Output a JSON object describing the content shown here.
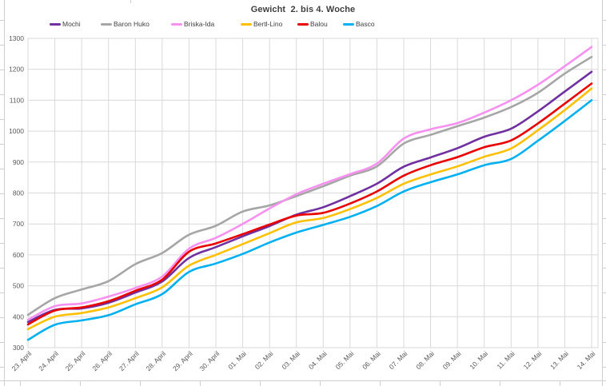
{
  "chart_data": {
    "type": "line",
    "title": "Gewicht  2. bis 4. Woche",
    "xlabel": "",
    "ylabel": "",
    "ylim": [
      300,
      1300
    ],
    "ytick_step": 100,
    "grid": true,
    "legend_position": "top",
    "categories": [
      "23. April",
      "24. April",
      "25. April",
      "26. April",
      "27. April",
      "28. April",
      "29. April",
      "30. April",
      "01. Mai",
      "02. Mai",
      "03. Mai",
      "04. Mai",
      "05. Mai",
      "06. Mai",
      "07. Mai",
      "08. Mai",
      "09. Mai",
      "10. Mai",
      "11. Mai",
      "12. Mai",
      "13. Mai",
      "14. Mai"
    ],
    "series": [
      {
        "name": "Mochi",
        "color": "#7030A0",
        "values": [
          383,
          422,
          427,
          445,
          478,
          514,
          590,
          625,
          660,
          693,
          730,
          754,
          790,
          830,
          885,
          915,
          945,
          982,
          1008,
          1064,
          1128,
          1192
        ]
      },
      {
        "name": "Baron Huko",
        "color": "#A6A6A6",
        "values": [
          406,
          460,
          488,
          515,
          570,
          606,
          665,
          694,
          740,
          760,
          790,
          822,
          856,
          886,
          960,
          988,
          1016,
          1044,
          1078,
          1124,
          1186,
          1240
        ]
      },
      {
        "name": "Briska-Ida",
        "color": "#F791F0",
        "values": [
          390,
          434,
          443,
          465,
          493,
          530,
          620,
          655,
          700,
          750,
          796,
          830,
          861,
          895,
          976,
          1006,
          1026,
          1060,
          1100,
          1150,
          1210,
          1272
        ]
      },
      {
        "name": "Bertl-Lino",
        "color": "#FFC000",
        "values": [
          360,
          400,
          412,
          430,
          460,
          495,
          565,
          600,
          635,
          670,
          705,
          719,
          748,
          784,
          830,
          860,
          886,
          917,
          944,
          1003,
          1068,
          1138
        ]
      },
      {
        "name": "Balou",
        "color": "#E90000",
        "values": [
          375,
          420,
          430,
          450,
          484,
          520,
          610,
          637,
          667,
          698,
          727,
          736,
          766,
          805,
          856,
          890,
          916,
          948,
          970,
          1025,
          1089,
          1154
        ]
      },
      {
        "name": "Basco",
        "color": "#00B0F0",
        "values": [
          325,
          374,
          388,
          405,
          440,
          473,
          545,
          572,
          603,
          640,
          672,
          697,
          723,
          758,
          805,
          835,
          860,
          890,
          910,
          969,
          1033,
          1100
        ]
      }
    ],
    "colors": {
      "gridline": "#D9D9D9",
      "axis_label": "#595959",
      "title": "#3F3F3F",
      "background": "#FFFFFF",
      "worksheet_grid": "#D0CECE"
    }
  }
}
